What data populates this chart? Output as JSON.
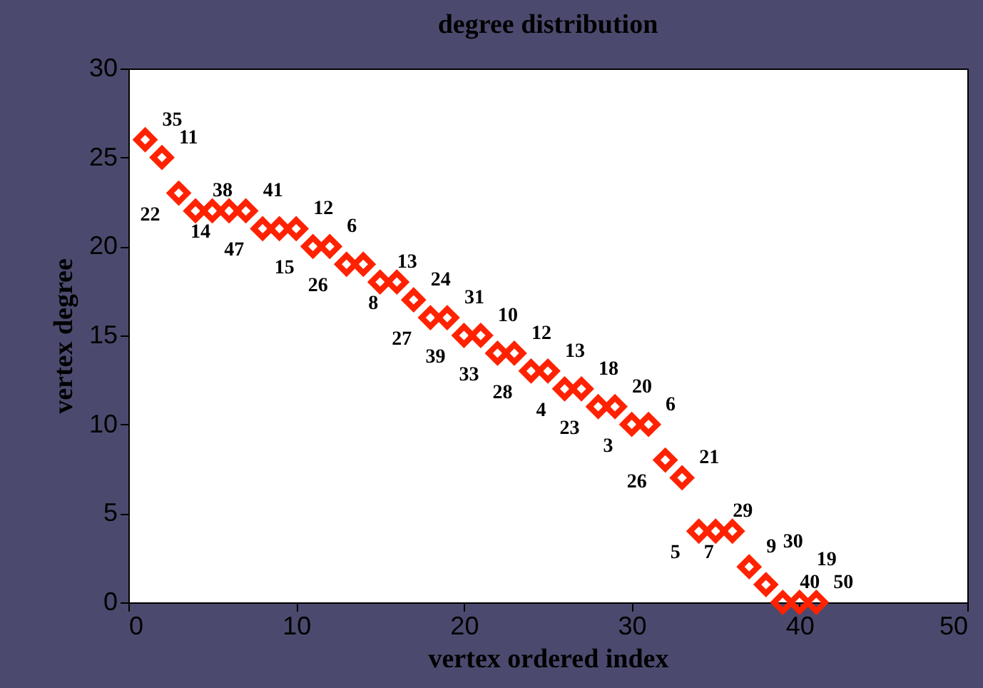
{
  "chart_data": {
    "type": "scatter",
    "title": "degree distribution",
    "xlabel": "vertex ordered index",
    "ylabel": "vertex degree",
    "x": [
      1,
      2,
      3,
      4,
      5,
      6,
      7,
      8,
      9,
      10,
      11,
      12,
      13,
      14,
      15,
      16,
      17,
      18,
      19,
      20,
      21,
      22,
      23,
      24,
      25,
      26,
      27,
      28,
      29,
      30,
      31,
      32,
      33,
      34,
      35,
      36,
      37,
      38,
      39,
      40,
      41
    ],
    "values": [
      26,
      25,
      23,
      22,
      22,
      22,
      22,
      21,
      21,
      21,
      20,
      20,
      19,
      19,
      18,
      18,
      17,
      16,
      16,
      15,
      15,
      14,
      14,
      13,
      13,
      12,
      12,
      11,
      11,
      10,
      10,
      8,
      7,
      4,
      4,
      4,
      2,
      1,
      0,
      0,
      0
    ],
    "color": "#ff2200",
    "marker": "diamond",
    "xlim": [
      0,
      50
    ],
    "ylim": [
      0,
      30
    ],
    "xticks": [
      0,
      10,
      20,
      30,
      40,
      50
    ],
    "yticks": [
      0,
      5,
      10,
      15,
      20,
      25,
      30
    ],
    "annotations": [
      {
        "text": "35",
        "x": 1,
        "y": 26
      },
      {
        "text": "11",
        "x": 2,
        "y": 25
      },
      {
        "text": "22",
        "x": 3,
        "y": 23
      },
      {
        "text": "38",
        "x": 4,
        "y": 22
      },
      {
        "text": "14",
        "x": 6,
        "y": 22
      },
      {
        "text": "41",
        "x": 7,
        "y": 22
      },
      {
        "text": "47",
        "x": 8,
        "y": 21
      },
      {
        "text": "12",
        "x": 10,
        "y": 21
      },
      {
        "text": "15",
        "x": 11,
        "y": 20
      },
      {
        "text": "6",
        "x": 12,
        "y": 20
      },
      {
        "text": "26",
        "x": 13,
        "y": 19
      },
      {
        "text": "13",
        "x": 15,
        "y": 18
      },
      {
        "text": "8",
        "x": 16,
        "y": 18
      },
      {
        "text": "24",
        "x": 17,
        "y": 17
      },
      {
        "text": "27",
        "x": 18,
        "y": 16
      },
      {
        "text": "31",
        "x": 19,
        "y": 16
      },
      {
        "text": "39",
        "x": 20,
        "y": 15
      },
      {
        "text": "10",
        "x": 21,
        "y": 15
      },
      {
        "text": "33",
        "x": 22,
        "y": 14
      },
      {
        "text": "12",
        "x": 23,
        "y": 14
      },
      {
        "text": "28",
        "x": 24,
        "y": 13
      },
      {
        "text": "13",
        "x": 25,
        "y": 13
      },
      {
        "text": "4",
        "x": 26,
        "y": 12
      },
      {
        "text": "18",
        "x": 27,
        "y": 12
      },
      {
        "text": "23",
        "x": 28,
        "y": 11
      },
      {
        "text": "20",
        "x": 29,
        "y": 11
      },
      {
        "text": "3",
        "x": 30,
        "y": 10
      },
      {
        "text": "6",
        "x": 31,
        "y": 10
      },
      {
        "text": "26",
        "x": 32,
        "y": 8
      },
      {
        "text": "21",
        "x": 33,
        "y": 7
      },
      {
        "text": "5",
        "x": 34,
        "y": 4
      },
      {
        "text": "29",
        "x": 35,
        "y": 4
      },
      {
        "text": "7",
        "x": 36,
        "y": 4
      },
      {
        "text": "9",
        "x": 37,
        "y": 2
      },
      {
        "text": "30",
        "x": 38,
        "y": 1
      },
      {
        "text": "40",
        "x": 39,
        "y": 0
      },
      {
        "text": "19",
        "x": 40,
        "y": 0
      },
      {
        "text": "50",
        "x": 41,
        "y": 0
      }
    ]
  }
}
